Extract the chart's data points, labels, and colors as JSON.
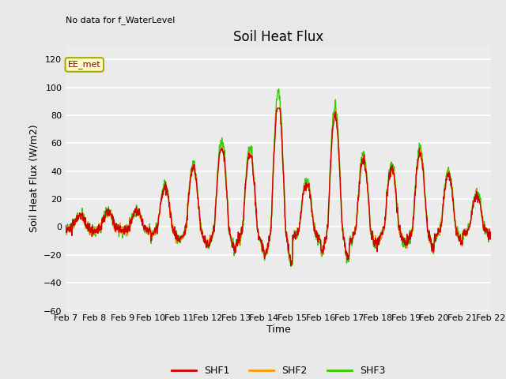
{
  "title": "Soil Heat Flux",
  "top_left_text": "No data for f_WaterLevel",
  "ylabel": "Soil Heat Flux (W/m2)",
  "xlabel": "Time",
  "ylim": [
    -60,
    130
  ],
  "yticks": [
    -60,
    -40,
    -20,
    0,
    20,
    40,
    60,
    80,
    100,
    120
  ],
  "colors": {
    "SHF1": "#cc0000",
    "SHF2": "#ff9900",
    "SHF3": "#33cc00"
  },
  "legend_label": "EE_met",
  "legend_entries": [
    "SHF1",
    "SHF2",
    "SHF3"
  ],
  "x_tick_labels": [
    "Feb 7",
    "Feb 8",
    "Feb 9",
    "Feb 10",
    "Feb 11",
    "Feb 12",
    "Feb 13",
    "Feb 14",
    "Feb 15",
    "Feb 16",
    "Feb 17",
    "Feb 18",
    "Feb 19",
    "Feb 20",
    "Feb 21",
    "Feb 22"
  ],
  "background_color": "#e8e8e8",
  "plot_bg_color": "#ebebeb",
  "linewidth": 1.0,
  "amp_schedule": [
    8,
    10,
    12,
    28,
    42,
    58,
    52,
    90,
    32,
    80,
    48,
    42,
    52,
    38,
    22
  ],
  "noise_std": 1.5
}
